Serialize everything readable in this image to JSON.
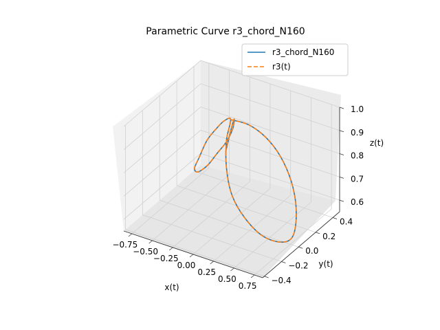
{
  "chart_data": {
    "type": "line",
    "projection": "3d",
    "title": "Parametric Curve r3_chord_N160",
    "xlabel": "x(t)",
    "ylabel": "y(t)",
    "zlabel": "z(t)",
    "xlim": [
      -0.85,
      0.85
    ],
    "ylim": [
      -0.42,
      0.48
    ],
    "zlim": [
      0.55,
      1.0
    ],
    "xticks": [
      "−0.75",
      "−0.50",
      "−0.25",
      "0.00",
      "0.25",
      "0.50",
      "0.75"
    ],
    "yticks": [
      "−0.4",
      "−0.2",
      "0.0",
      "0.2",
      "0.4"
    ],
    "zticks": [
      "0.6",
      "0.7",
      "0.8",
      "0.9",
      "1.0"
    ],
    "grid": true,
    "legend_position": "upper-right",
    "series": [
      {
        "name": "r3_chord_N160",
        "style": "solid",
        "color": "#1f77b4",
        "points": [
          [
            0.02,
            0.0,
            1.0
          ],
          [
            0.22,
            0.03,
            0.99
          ],
          [
            0.42,
            0.06,
            0.94
          ],
          [
            0.58,
            0.08,
            0.86
          ],
          [
            0.7,
            0.08,
            0.76
          ],
          [
            0.76,
            0.06,
            0.66
          ],
          [
            0.76,
            0.02,
            0.58
          ],
          [
            0.68,
            -0.03,
            0.56
          ],
          [
            0.5,
            -0.08,
            0.58
          ],
          [
            0.3,
            -0.1,
            0.64
          ],
          [
            0.14,
            -0.1,
            0.72
          ],
          [
            0.04,
            -0.07,
            0.82
          ],
          [
            0.0,
            -0.03,
            0.92
          ],
          [
            0.02,
            0.0,
            1.0
          ],
          [
            -0.12,
            0.06,
            0.96
          ],
          [
            -0.3,
            0.14,
            0.88
          ],
          [
            -0.5,
            0.22,
            0.78
          ],
          [
            -0.68,
            0.3,
            0.66
          ],
          [
            -0.8,
            0.36,
            0.58
          ],
          [
            -0.78,
            0.38,
            0.56
          ],
          [
            -0.62,
            0.34,
            0.62
          ],
          [
            -0.42,
            0.26,
            0.72
          ],
          [
            -0.22,
            0.18,
            0.82
          ],
          [
            -0.06,
            0.1,
            0.92
          ],
          [
            0.02,
            0.04,
            0.99
          ],
          [
            0.04,
            -0.02,
            0.96
          ],
          [
            0.02,
            -0.06,
            0.88
          ]
        ]
      },
      {
        "name": "r3(t)",
        "style": "dashed",
        "color": "#ff7f0e",
        "points": [
          [
            0.02,
            0.0,
            1.0
          ],
          [
            0.22,
            0.03,
            0.99
          ],
          [
            0.42,
            0.06,
            0.94
          ],
          [
            0.58,
            0.08,
            0.86
          ],
          [
            0.7,
            0.08,
            0.76
          ],
          [
            0.76,
            0.06,
            0.66
          ],
          [
            0.76,
            0.02,
            0.58
          ],
          [
            0.68,
            -0.03,
            0.56
          ],
          [
            0.5,
            -0.08,
            0.58
          ],
          [
            0.3,
            -0.1,
            0.64
          ],
          [
            0.14,
            -0.1,
            0.72
          ],
          [
            0.04,
            -0.07,
            0.82
          ],
          [
            0.0,
            -0.03,
            0.92
          ],
          [
            0.02,
            0.0,
            1.0
          ],
          [
            -0.12,
            0.06,
            0.96
          ],
          [
            -0.3,
            0.14,
            0.88
          ],
          [
            -0.5,
            0.22,
            0.78
          ],
          [
            -0.68,
            0.3,
            0.66
          ],
          [
            -0.8,
            0.36,
            0.58
          ],
          [
            -0.78,
            0.38,
            0.56
          ],
          [
            -0.62,
            0.34,
            0.62
          ],
          [
            -0.42,
            0.26,
            0.72
          ],
          [
            -0.22,
            0.18,
            0.82
          ],
          [
            -0.06,
            0.1,
            0.92
          ],
          [
            0.02,
            0.04,
            0.99
          ],
          [
            0.04,
            -0.02,
            0.96
          ],
          [
            0.02,
            -0.06,
            0.88
          ]
        ]
      }
    ]
  }
}
